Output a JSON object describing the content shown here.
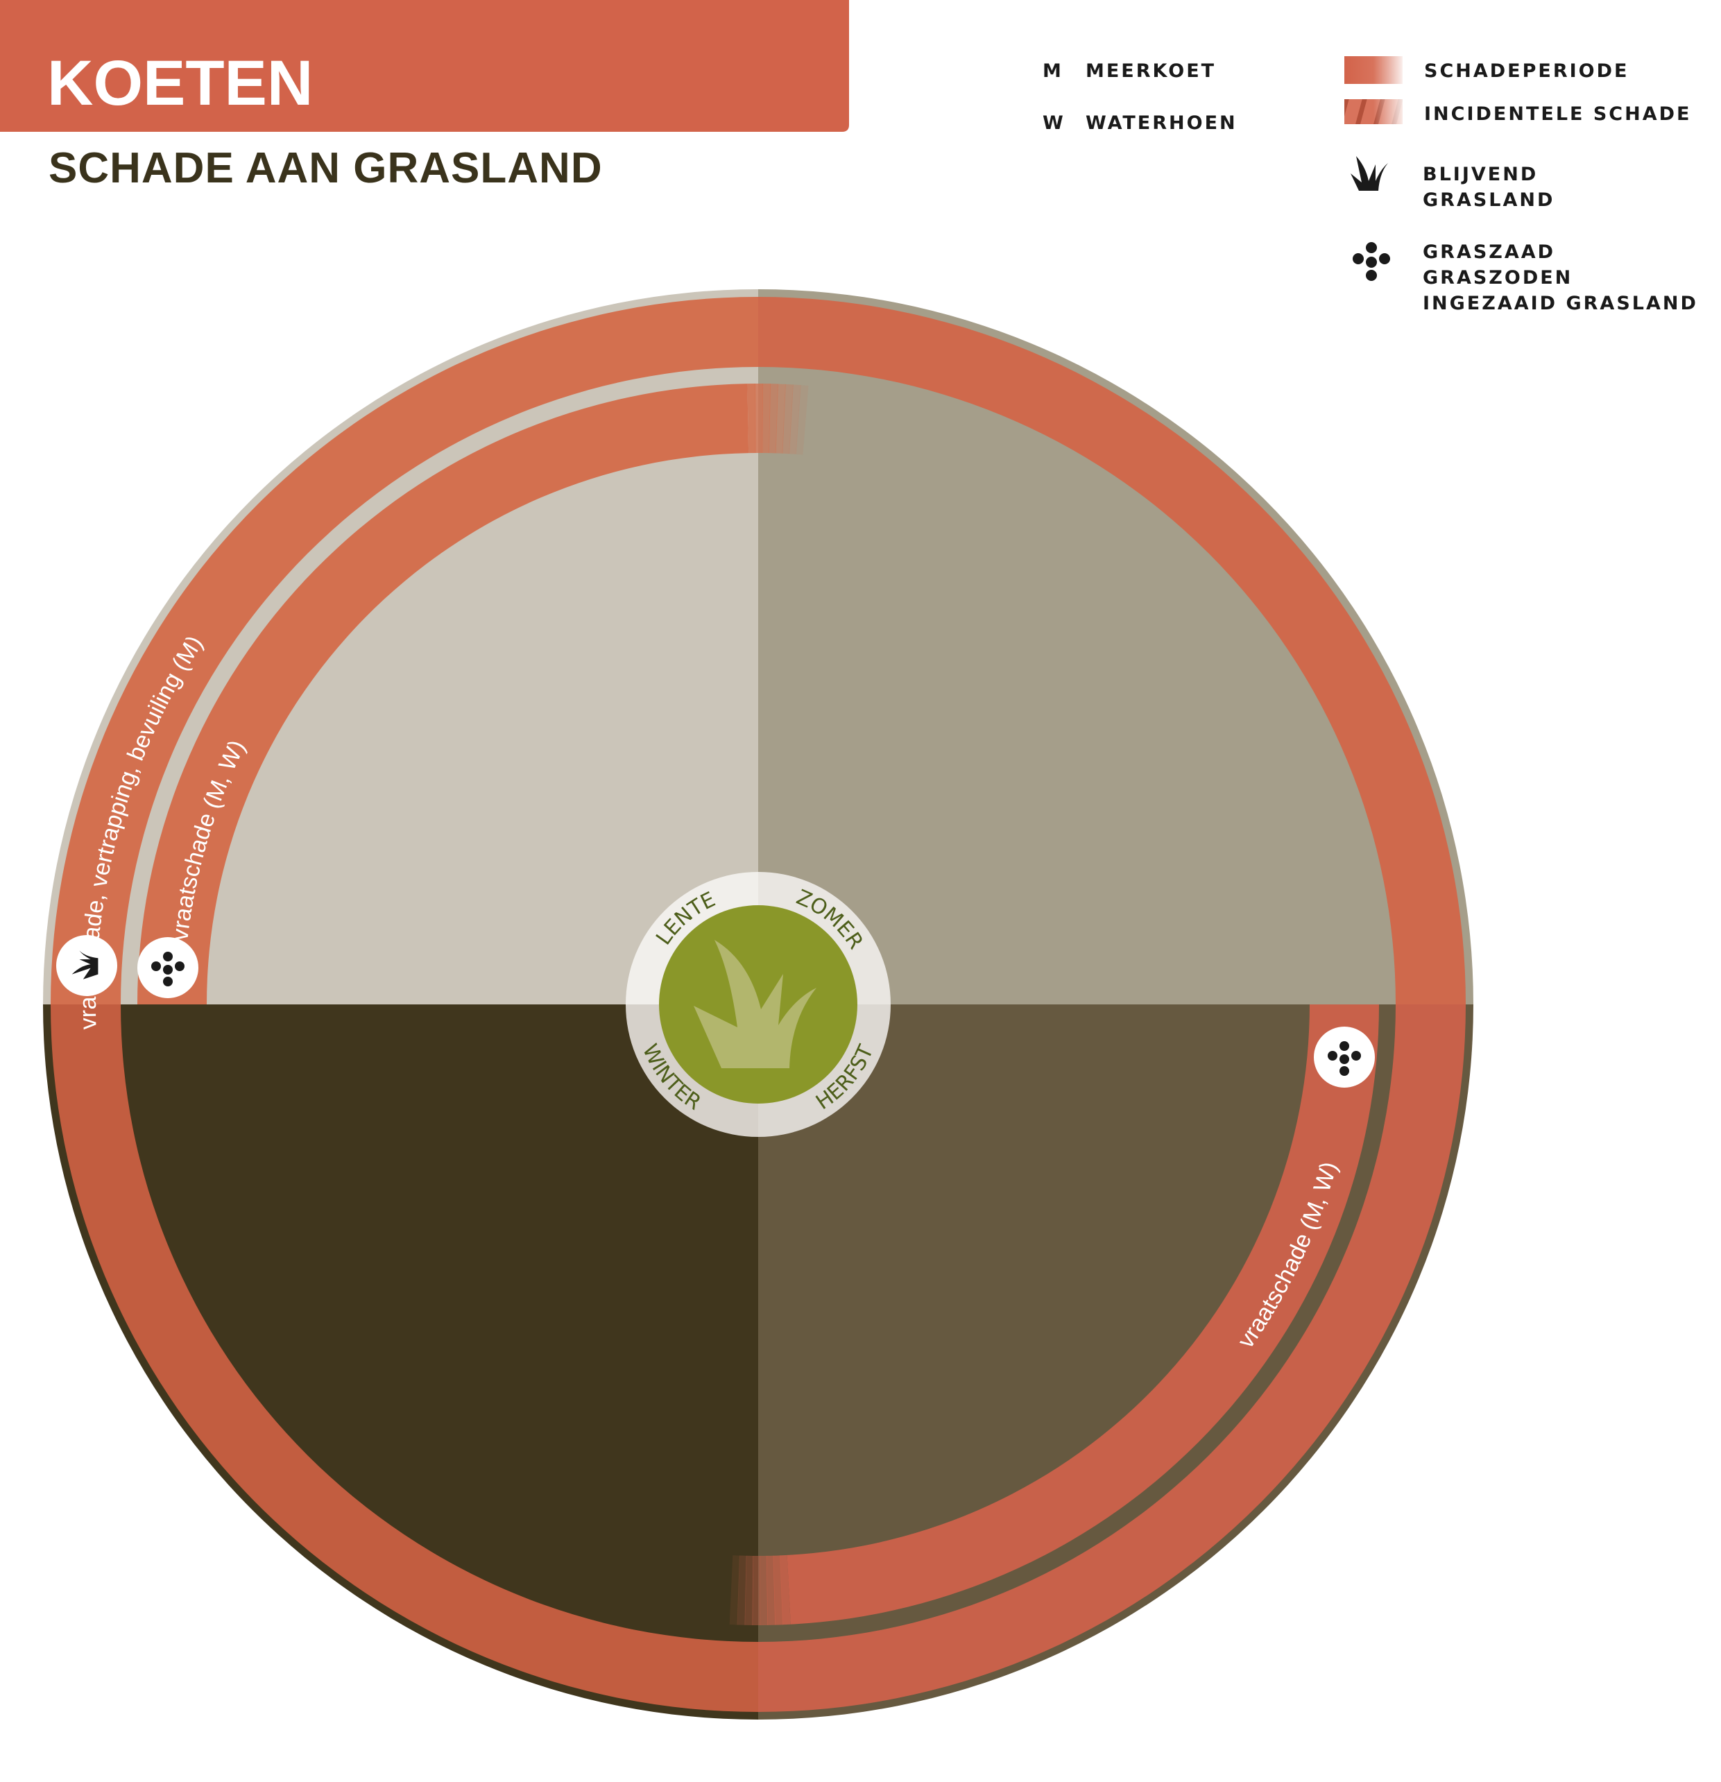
{
  "header": {
    "title": "KOETEN",
    "subtitle": "SCHADE AAN GRASLAND"
  },
  "legend": {
    "species": [
      {
        "code": "M",
        "name": "MEERKOET"
      },
      {
        "code": "W",
        "name": "WATERHOEN"
      }
    ],
    "types": [
      {
        "label": "SCHADEPERIODE",
        "swatch": "solid-fade"
      },
      {
        "label": "INCIDENTELE SCHADE",
        "swatch": "striped-fade"
      }
    ],
    "icons": [
      {
        "icon": "grass-tuft-icon",
        "lines": [
          "BLIJVEND",
          "GRASLAND"
        ]
      },
      {
        "icon": "seeds-icon",
        "lines": [
          "GRASZAAD",
          "GRASZODEN",
          "INGEZAAID GRASLAND"
        ]
      }
    ]
  },
  "seasons": [
    "LENTE",
    "ZOMER",
    "HERFST",
    "WINTER"
  ],
  "rings": {
    "outer": {
      "label": "vraatschade, vertrapping, bevuiling (M)",
      "icon": "grass-tuft-icon",
      "period": "whole year"
    },
    "inner_spring": {
      "label": "vraatschade (M, W)",
      "icon": "seeds-icon",
      "period": "LENTE"
    },
    "inner_autumn": {
      "label": "vraatschade (M, W)",
      "icon": "seeds-icon",
      "period": "HERFST"
    }
  },
  "colors": {
    "accent": "#d2634a",
    "lente": "#cbc5b9",
    "zomer": "#a59e8a",
    "herfst": "#665940",
    "winter": "#40361d",
    "center_green": "#8a9729",
    "season_text": "#4d5e1a",
    "title_dark": "#3a331c"
  }
}
